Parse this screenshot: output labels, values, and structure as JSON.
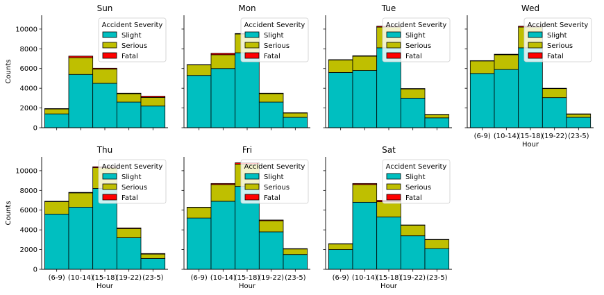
{
  "colors": {
    "Slight": "#00bfc0",
    "Serious": "#bfbf00",
    "Fatal": "#ff0000"
  },
  "chart_data": {
    "type": "bar",
    "stacked": true,
    "layout": "small-multiples",
    "categories": [
      "(6-9)",
      "(10-14)",
      "(15-18)",
      "(19-22)",
      "(23-5)"
    ],
    "xlabel": "Hour",
    "ylabel": "Counts",
    "ylim": [
      0,
      11400
    ],
    "yticks": [
      0,
      2000,
      4000,
      6000,
      8000,
      10000
    ],
    "legend": {
      "title": "Accident Severity",
      "entries": [
        "Slight",
        "Serious",
        "Fatal"
      ],
      "placement": "top-right"
    },
    "panels": [
      {
        "title": "Sun",
        "series": [
          {
            "name": "Slight",
            "values": [
              1400,
              5400,
              4500,
              2600,
              2200
            ]
          },
          {
            "name": "Serious",
            "values": [
              500,
              1700,
              1450,
              850,
              870
            ]
          },
          {
            "name": "Fatal",
            "values": [
              40,
              160,
              80,
              50,
              130
            ]
          }
        ]
      },
      {
        "title": "Mon",
        "series": [
          {
            "name": "Slight",
            "values": [
              5300,
              6000,
              7600,
              2600,
              1050
            ]
          },
          {
            "name": "Serious",
            "values": [
              1070,
              1400,
              1900,
              860,
              440
            ]
          },
          {
            "name": "Fatal",
            "values": [
              30,
              150,
              50,
              40,
              30
            ]
          }
        ]
      },
      {
        "title": "Tue",
        "series": [
          {
            "name": "Slight",
            "values": [
              5600,
              5800,
              8100,
              3000,
              1000
            ]
          },
          {
            "name": "Serious",
            "values": [
              1270,
              1450,
              2100,
              930,
              330
            ]
          },
          {
            "name": "Fatal",
            "values": [
              30,
              50,
              100,
              40,
              20
            ]
          }
        ]
      },
      {
        "title": "Wed",
        "series": [
          {
            "name": "Slight",
            "values": [
              5500,
              5900,
              8100,
              3050,
              1050
            ]
          },
          {
            "name": "Serious",
            "values": [
              1270,
              1500,
              2100,
              920,
              340
            ]
          },
          {
            "name": "Fatal",
            "values": [
              30,
              50,
              100,
              30,
              10
            ]
          }
        ]
      },
      {
        "title": "Thu",
        "series": [
          {
            "name": "Slight",
            "values": [
              5600,
              6300,
              8200,
              3200,
              1100
            ]
          },
          {
            "name": "Serious",
            "values": [
              1270,
              1450,
              2100,
              930,
              440
            ]
          },
          {
            "name": "Fatal",
            "values": [
              30,
              50,
              100,
              70,
              60
            ]
          }
        ]
      },
      {
        "title": "Fri",
        "series": [
          {
            "name": "Slight",
            "values": [
              5200,
              6900,
              8400,
              3800,
              1500
            ]
          },
          {
            "name": "Serious",
            "values": [
              1070,
              1700,
              2260,
              1130,
              560
            ]
          },
          {
            "name": "Fatal",
            "values": [
              30,
              100,
              140,
              70,
              40
            ]
          }
        ]
      },
      {
        "title": "Sat",
        "series": [
          {
            "name": "Slight",
            "values": [
              2000,
              6800,
              5300,
              3400,
              2100
            ]
          },
          {
            "name": "Serious",
            "values": [
              570,
              1800,
              1560,
              1070,
              900
            ]
          },
          {
            "name": "Fatal",
            "values": [
              30,
              100,
              140,
              30,
              50
            ]
          }
        ]
      }
    ]
  }
}
